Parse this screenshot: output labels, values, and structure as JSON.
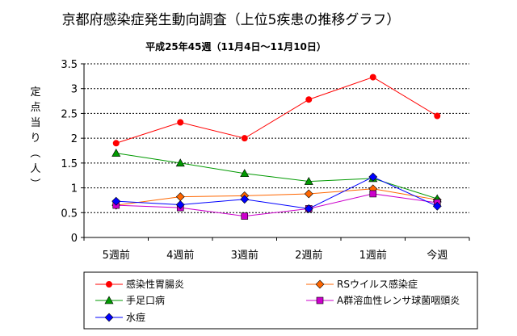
{
  "chart_data": {
    "type": "line",
    "title": "京都府感染症発生動向調査（上位5疾患の推移グラフ）",
    "subtitle": "平成25年45週（11月4日～11月10日）",
    "ylabel": "定点当り（人）",
    "ylim": [
      0,
      3.5
    ],
    "yticks": [
      "0",
      "0.5",
      "1",
      "1.5",
      "2",
      "2.5",
      "3",
      "3.5"
    ],
    "grid": true,
    "legend_position": "bottom",
    "categories": [
      "5週前",
      "4週前",
      "3週前",
      "2週前",
      "1週前",
      "今週"
    ],
    "series": [
      {
        "name": "感染性胃腸炎",
        "color": "#ff0000",
        "marker": "circle",
        "values": [
          1.9,
          2.32,
          2.0,
          2.78,
          3.23,
          2.45
        ]
      },
      {
        "name": "RSウイルス感染症",
        "color": "#ff6600",
        "marker": "diamond",
        "values": [
          0.65,
          0.82,
          0.84,
          0.88,
          0.98,
          0.76
        ]
      },
      {
        "name": "手足口病",
        "color": "#009900",
        "marker": "triangle",
        "values": [
          1.7,
          1.5,
          1.29,
          1.13,
          1.19,
          0.78
        ]
      },
      {
        "name": "A群溶血性レンサ球菌咽頭炎",
        "color": "#cc00cc",
        "marker": "square",
        "values": [
          0.65,
          0.6,
          0.43,
          0.58,
          0.88,
          0.7
        ]
      },
      {
        "name": "水痘",
        "color": "#0000ff",
        "marker": "diamond",
        "values": [
          0.73,
          0.66,
          0.77,
          0.58,
          1.22,
          0.63
        ]
      }
    ]
  }
}
